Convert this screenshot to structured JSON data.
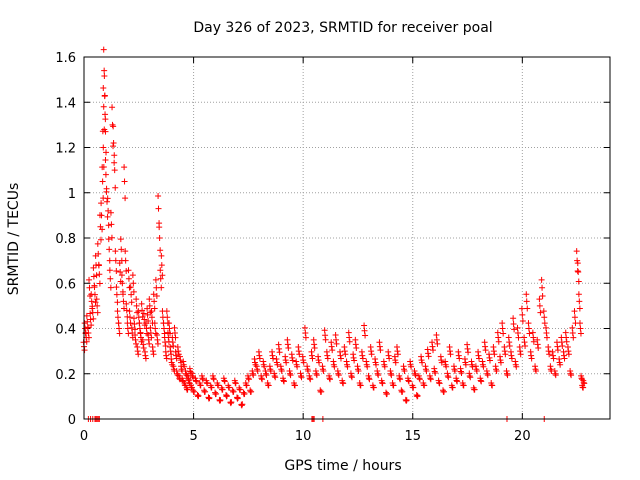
{
  "chart_data": {
    "type": "scatter",
    "title": "Day 326 of 2023, SRMTID for receiver poal",
    "xlabel": "GPS time / hours",
    "ylabel": "SRMTID / TECUs",
    "xlim": [
      0,
      24
    ],
    "ylim": [
      0,
      1.6
    ],
    "xticks": [
      0,
      5,
      10,
      15,
      20
    ],
    "xtick_labels": [
      "0",
      "5",
      "10",
      "15",
      "20"
    ],
    "yticks": [
      0,
      0.2,
      0.4,
      0.6,
      0.8,
      1,
      1.2,
      1.4,
      1.6
    ],
    "ytick_labels": [
      "0",
      "0.2",
      "0.4",
      "0.6",
      "0.8",
      "1",
      "1.2",
      "1.4",
      "1.6"
    ],
    "grid": true,
    "marker": "+",
    "color": "#ff0000",
    "series": [
      {
        "name": "poal",
        "points": [
          [
            0.0,
            0.32
          ],
          [
            0.05,
            0.4
          ],
          [
            0.1,
            0.36
          ],
          [
            0.15,
            0.43
          ],
          [
            0.2,
            0.38
          ],
          [
            0.25,
            0.58
          ],
          [
            0.3,
            0.44
          ],
          [
            0.35,
            0.52
          ],
          [
            0.4,
            0.47
          ],
          [
            0.45,
            0.63
          ],
          [
            0.5,
            0.55
          ],
          [
            0.55,
            0.68
          ],
          [
            0.6,
            0.5
          ],
          [
            0.65,
            0.73
          ],
          [
            0.7,
            0.64
          ],
          [
            0.75,
            0.85
          ],
          [
            0.8,
            0.9
          ],
          [
            0.85,
            1.05
          ],
          [
            0.88,
            1.2
          ],
          [
            0.9,
            1.38
          ],
          [
            0.92,
            1.54
          ],
          [
            0.95,
            1.43
          ],
          [
            0.98,
            1.27
          ],
          [
            1.0,
            1.08
          ],
          [
            1.05,
            0.96
          ],
          [
            1.1,
            0.92
          ],
          [
            1.15,
            0.75
          ],
          [
            1.2,
            0.62
          ],
          [
            1.25,
            0.86
          ],
          [
            1.3,
            1.3
          ],
          [
            1.35,
            1.22
          ],
          [
            1.4,
            1.1
          ],
          [
            1.45,
            0.7
          ],
          [
            1.5,
            0.55
          ],
          [
            1.55,
            0.45
          ],
          [
            1.6,
            0.4
          ],
          [
            1.65,
            0.65
          ],
          [
            1.7,
            0.75
          ],
          [
            1.75,
            0.6
          ],
          [
            1.8,
            0.52
          ],
          [
            1.85,
            1.05
          ],
          [
            1.9,
            0.7
          ],
          [
            1.95,
            0.48
          ],
          [
            2.0,
            0.4
          ],
          [
            2.05,
            0.62
          ],
          [
            2.1,
            0.45
          ],
          [
            2.15,
            0.55
          ],
          [
            2.2,
            0.38
          ],
          [
            2.25,
            0.6
          ],
          [
            2.3,
            0.42
          ],
          [
            2.35,
            0.35
          ],
          [
            2.4,
            0.5
          ],
          [
            2.45,
            0.3
          ],
          [
            2.5,
            0.45
          ],
          [
            2.55,
            0.4
          ],
          [
            2.6,
            0.36
          ],
          [
            2.65,
            0.48
          ],
          [
            2.7,
            0.33
          ],
          [
            2.75,
            0.44
          ],
          [
            2.8,
            0.28
          ],
          [
            2.85,
            0.4
          ],
          [
            2.9,
            0.46
          ],
          [
            2.95,
            0.35
          ],
          [
            3.0,
            0.5
          ],
          [
            3.05,
            0.38
          ],
          [
            3.1,
            0.45
          ],
          [
            3.15,
            0.3
          ],
          [
            3.2,
            0.52
          ],
          [
            3.25,
            0.4
          ],
          [
            3.3,
            0.58
          ],
          [
            3.35,
            0.35
          ],
          [
            3.4,
            0.93
          ],
          [
            3.45,
            0.8
          ],
          [
            3.5,
            0.62
          ],
          [
            3.55,
            0.68
          ],
          [
            3.6,
            0.45
          ],
          [
            3.65,
            0.4
          ],
          [
            3.7,
            0.34
          ],
          [
            3.75,
            0.28
          ],
          [
            3.8,
            0.45
          ],
          [
            3.85,
            0.36
          ],
          [
            3.9,
            0.4
          ],
          [
            3.95,
            0.3
          ],
          [
            4.0,
            0.25
          ],
          [
            4.05,
            0.34
          ],
          [
            4.1,
            0.22
          ],
          [
            4.15,
            0.38
          ],
          [
            4.2,
            0.28
          ],
          [
            4.25,
            0.2
          ],
          [
            4.3,
            0.3
          ],
          [
            4.35,
            0.18
          ],
          [
            4.4,
            0.26
          ],
          [
            4.45,
            0.22
          ],
          [
            4.5,
            0.17
          ],
          [
            4.55,
            0.24
          ],
          [
            4.6,
            0.15
          ],
          [
            4.65,
            0.2
          ],
          [
            4.7,
            0.13
          ],
          [
            4.75,
            0.18
          ],
          [
            4.8,
            0.16
          ],
          [
            4.85,
            0.21
          ],
          [
            4.9,
            0.14
          ],
          [
            4.95,
            0.19
          ],
          [
            5.0,
            0.12
          ],
          [
            5.1,
            0.17
          ],
          [
            5.2,
            0.1
          ],
          [
            5.3,
            0.15
          ],
          [
            5.4,
            0.18
          ],
          [
            5.5,
            0.12
          ],
          [
            5.6,
            0.16
          ],
          [
            5.7,
            0.09
          ],
          [
            5.8,
            0.14
          ],
          [
            5.9,
            0.18
          ],
          [
            6.0,
            0.11
          ],
          [
            6.1,
            0.15
          ],
          [
            6.2,
            0.08
          ],
          [
            6.3,
            0.13
          ],
          [
            6.4,
            0.17
          ],
          [
            6.5,
            0.1
          ],
          [
            6.6,
            0.14
          ],
          [
            6.7,
            0.07
          ],
          [
            6.8,
            0.12
          ],
          [
            6.9,
            0.16
          ],
          [
            7.0,
            0.09
          ],
          [
            7.1,
            0.13
          ],
          [
            7.2,
            0.06
          ],
          [
            7.3,
            0.11
          ],
          [
            7.4,
            0.15
          ],
          [
            7.5,
            0.18
          ],
          [
            7.6,
            0.12
          ],
          [
            7.7,
            0.2
          ],
          [
            7.8,
            0.25
          ],
          [
            7.9,
            0.22
          ],
          [
            8.0,
            0.28
          ],
          [
            8.1,
            0.18
          ],
          [
            8.2,
            0.24
          ],
          [
            8.3,
            0.2
          ],
          [
            8.4,
            0.15
          ],
          [
            8.5,
            0.22
          ],
          [
            8.6,
            0.28
          ],
          [
            8.7,
            0.19
          ],
          [
            8.8,
            0.25
          ],
          [
            8.9,
            0.31
          ],
          [
            9.0,
            0.22
          ],
          [
            9.1,
            0.17
          ],
          [
            9.2,
            0.26
          ],
          [
            9.3,
            0.33
          ],
          [
            9.4,
            0.2
          ],
          [
            9.5,
            0.27
          ],
          [
            9.6,
            0.15
          ],
          [
            9.7,
            0.24
          ],
          [
            9.8,
            0.3
          ],
          [
            9.9,
            0.19
          ],
          [
            10.0,
            0.26
          ],
          [
            10.1,
            0.38
          ],
          [
            10.2,
            0.22
          ],
          [
            10.3,
            0.18
          ],
          [
            10.4,
            0.28
          ],
          [
            10.5,
            0.33
          ],
          [
            10.6,
            0.2
          ],
          [
            10.7,
            0.26
          ],
          [
            10.8,
            0.12
          ],
          [
            10.9,
            0.22
          ],
          [
            11.0,
            0.37
          ],
          [
            11.1,
            0.28
          ],
          [
            11.2,
            0.18
          ],
          [
            11.3,
            0.32
          ],
          [
            11.4,
            0.24
          ],
          [
            11.5,
            0.35
          ],
          [
            11.6,
            0.2
          ],
          [
            11.7,
            0.28
          ],
          [
            11.8,
            0.16
          ],
          [
            11.9,
            0.3
          ],
          [
            12.0,
            0.24
          ],
          [
            12.1,
            0.36
          ],
          [
            12.2,
            0.19
          ],
          [
            12.3,
            0.27
          ],
          [
            12.4,
            0.33
          ],
          [
            12.5,
            0.22
          ],
          [
            12.6,
            0.15
          ],
          [
            12.7,
            0.28
          ],
          [
            12.8,
            0.39
          ],
          [
            12.9,
            0.24
          ],
          [
            13.0,
            0.18
          ],
          [
            13.1,
            0.3
          ],
          [
            13.2,
            0.14
          ],
          [
            13.3,
            0.25
          ],
          [
            13.4,
            0.2
          ],
          [
            13.5,
            0.32
          ],
          [
            13.6,
            0.16
          ],
          [
            13.7,
            0.24
          ],
          [
            13.8,
            0.11
          ],
          [
            13.9,
            0.28
          ],
          [
            14.0,
            0.2
          ],
          [
            14.1,
            0.15
          ],
          [
            14.2,
            0.26
          ],
          [
            14.3,
            0.3
          ],
          [
            14.4,
            0.18
          ],
          [
            14.5,
            0.12
          ],
          [
            14.6,
            0.22
          ],
          [
            14.7,
            0.08
          ],
          [
            14.8,
            0.17
          ],
          [
            14.9,
            0.24
          ],
          [
            15.0,
            0.14
          ],
          [
            15.1,
            0.2
          ],
          [
            15.2,
            0.1
          ],
          [
            15.3,
            0.18
          ],
          [
            15.4,
            0.26
          ],
          [
            15.5,
            0.15
          ],
          [
            15.6,
            0.22
          ],
          [
            15.7,
            0.29
          ],
          [
            15.8,
            0.18
          ],
          [
            15.9,
            0.32
          ],
          [
            16.0,
            0.21
          ],
          [
            16.1,
            0.35
          ],
          [
            16.2,
            0.16
          ],
          [
            16.3,
            0.26
          ],
          [
            16.4,
            0.12
          ],
          [
            16.5,
            0.24
          ],
          [
            16.6,
            0.19
          ],
          [
            16.7,
            0.3
          ],
          [
            16.8,
            0.14
          ],
          [
            16.9,
            0.22
          ],
          [
            17.0,
            0.17
          ],
          [
            17.1,
            0.28
          ],
          [
            17.2,
            0.21
          ],
          [
            17.3,
            0.15
          ],
          [
            17.4,
            0.25
          ],
          [
            17.5,
            0.31
          ],
          [
            17.6,
            0.19
          ],
          [
            17.7,
            0.24
          ],
          [
            17.8,
            0.13
          ],
          [
            17.9,
            0.22
          ],
          [
            18.0,
            0.28
          ],
          [
            18.1,
            0.17
          ],
          [
            18.2,
            0.24
          ],
          [
            18.3,
            0.32
          ],
          [
            18.4,
            0.2
          ],
          [
            18.5,
            0.27
          ],
          [
            18.6,
            0.15
          ],
          [
            18.7,
            0.3
          ],
          [
            18.8,
            0.22
          ],
          [
            18.9,
            0.36
          ],
          [
            19.0,
            0.26
          ],
          [
            19.1,
            0.4
          ],
          [
            19.2,
            0.3
          ],
          [
            19.3,
            0.2
          ],
          [
            19.4,
            0.34
          ],
          [
            19.5,
            0.28
          ],
          [
            19.6,
            0.42
          ],
          [
            19.7,
            0.24
          ],
          [
            19.8,
            0.38
          ],
          [
            19.9,
            0.3
          ],
          [
            20.0,
            0.46
          ],
          [
            20.1,
            0.34
          ],
          [
            20.2,
            0.52
          ],
          [
            20.3,
            0.4
          ],
          [
            20.4,
            0.28
          ],
          [
            20.5,
            0.36
          ],
          [
            20.6,
            0.22
          ],
          [
            20.7,
            0.33
          ],
          [
            20.8,
            0.5
          ],
          [
            20.9,
            0.58
          ],
          [
            21.0,
            0.45
          ],
          [
            21.1,
            0.38
          ],
          [
            21.2,
            0.3
          ],
          [
            21.3,
            0.22
          ],
          [
            21.4,
            0.28
          ],
          [
            21.5,
            0.2
          ],
          [
            21.6,
            0.32
          ],
          [
            21.7,
            0.25
          ],
          [
            21.8,
            0.34
          ],
          [
            21.9,
            0.28
          ],
          [
            22.0,
            0.36
          ],
          [
            22.1,
            0.3
          ],
          [
            22.2,
            0.2
          ],
          [
            22.3,
            0.38
          ],
          [
            22.4,
            0.45
          ],
          [
            22.5,
            0.7
          ],
          [
            22.55,
            0.65
          ],
          [
            22.6,
            0.52
          ],
          [
            22.65,
            0.4
          ],
          [
            22.7,
            0.18
          ],
          [
            22.75,
            0.14
          ],
          [
            22.8,
            0.16
          ]
        ]
      }
    ],
    "zero_points": [
      0.2,
      0.3,
      0.4,
      0.5,
      0.55,
      0.6,
      0.65,
      0.7,
      10.4,
      10.45,
      10.5,
      10.9,
      19.3,
      21.0
    ]
  }
}
